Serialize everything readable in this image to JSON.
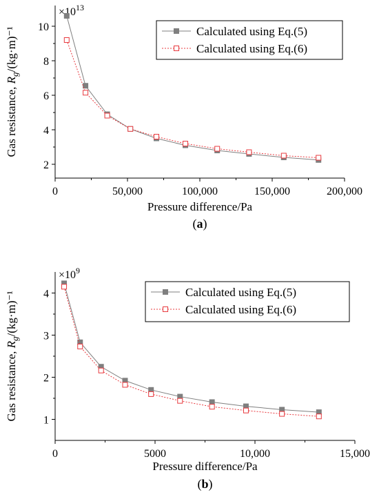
{
  "chart_data": [
    {
      "type": "line",
      "panel_label": "(a)",
      "xlabel": "Pressure difference/Pa",
      "ylabel": "Gas resistance, Rg/(kg·m)⁻¹",
      "y_multiplier": "×10",
      "y_multiplier_exp": "13",
      "xlim": [
        0,
        200000
      ],
      "ylim": [
        1.2,
        11.2
      ],
      "x_ticks": [
        0,
        50000,
        100000,
        150000,
        200000
      ],
      "x_tick_labels": [
        "0",
        "50,000",
        "100,000",
        "150,000",
        "200,000"
      ],
      "y_ticks": [
        2,
        4,
        6,
        8,
        10
      ],
      "y_tick_labels": [
        "2",
        "4",
        "6",
        "8",
        "10"
      ],
      "legend_position": "top-right",
      "series": [
        {
          "name": "Calculated using Eq.(5)",
          "color": "#7f7f7f",
          "marker": "filled-square",
          "line": "solid",
          "x": [
            8000,
            21000,
            36000,
            52000,
            70000,
            90000,
            112000,
            134000,
            158000,
            182000
          ],
          "y": [
            10.6,
            6.55,
            4.9,
            4.05,
            3.5,
            3.1,
            2.8,
            2.6,
            2.4,
            2.25
          ]
        },
        {
          "name": "Calculated using Eq.(6)",
          "color": "#e8383d",
          "marker": "open-square",
          "line": "dotted",
          "x": [
            8000,
            21000,
            36000,
            52000,
            70000,
            90000,
            112000,
            134000,
            158000,
            182000
          ],
          "y": [
            9.2,
            6.15,
            4.82,
            4.05,
            3.6,
            3.2,
            2.9,
            2.7,
            2.5,
            2.38
          ]
        }
      ]
    },
    {
      "type": "line",
      "panel_label": "(b)",
      "xlabel": "Pressure difference/Pa",
      "ylabel": "Gas resistance, Rg/(kg·m)⁻¹",
      "y_multiplier": "×10",
      "y_multiplier_exp": "9",
      "xlim": [
        0,
        15000
      ],
      "ylim": [
        0.5,
        4.5
      ],
      "x_ticks": [
        0,
        5000,
        10000,
        15000
      ],
      "x_tick_labels": [
        "0",
        "5000",
        "10,000",
        "15,000"
      ],
      "y_ticks": [
        1,
        2,
        3,
        4
      ],
      "y_tick_labels": [
        "1",
        "2",
        "3",
        "4"
      ],
      "legend_position": "top-right",
      "series": [
        {
          "name": "Calculated using Eq.(5)",
          "color": "#7f7f7f",
          "marker": "filled-square",
          "line": "solid",
          "x": [
            450,
            1250,
            2300,
            3500,
            4800,
            6250,
            7850,
            9550,
            11350,
            13200
          ],
          "y": [
            4.23,
            2.83,
            2.25,
            1.92,
            1.7,
            1.54,
            1.41,
            1.31,
            1.23,
            1.17
          ]
        },
        {
          "name": "Calculated using Eq.(6)",
          "color": "#e8383d",
          "marker": "open-square",
          "line": "dotted",
          "x": [
            450,
            1250,
            2300,
            3500,
            4800,
            6250,
            7850,
            9550,
            11350,
            13200
          ],
          "y": [
            4.15,
            2.73,
            2.16,
            1.82,
            1.6,
            1.44,
            1.3,
            1.21,
            1.13,
            1.07
          ]
        }
      ]
    }
  ]
}
